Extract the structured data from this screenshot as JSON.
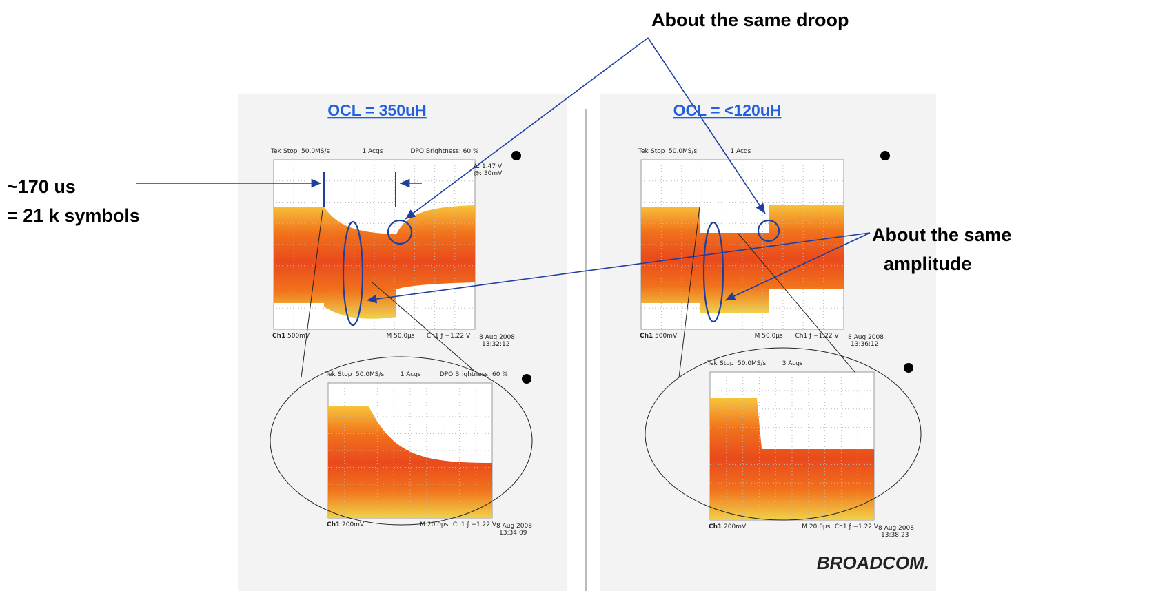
{
  "annotations": {
    "droop": "About the same droop",
    "time": [
      "~170 us",
      "= 21 k symbols"
    ],
    "amplitude": [
      "About the same",
      "amplitude"
    ]
  },
  "panels": [
    {
      "title": "OCL = 350uH"
    },
    {
      "title": "OCL = <120uH"
    }
  ],
  "scopes": [
    {
      "brand": "Tek",
      "state": "Stop",
      "rate": "50.0MS/s",
      "acqs": "1 Acqs",
      "brightness": "DPO Brightness: 60 %",
      "readout": [
        "Δ: 1.47 V",
        "@: 30mV"
      ],
      "channel": "Ch1",
      "volts": "500mV",
      "timebase": "M 50.0µs",
      "trigger": "Ch1 ƒ −1.22 V",
      "date": "8 Aug 2008",
      "time": "13:32:12"
    },
    {
      "brand": "Tek",
      "state": "Stop",
      "rate": "50.0MS/s",
      "acqs": "1 Acqs",
      "brightness": "DPO Brightness: 60 %",
      "channel": "Ch1",
      "volts": "200mV",
      "timebase": "M 20.0µs",
      "trigger": "Ch1 ƒ −1.22 V",
      "date": "8 Aug 2008",
      "time": "13:34:09"
    },
    {
      "brand": "Tek",
      "state": "Stop",
      "rate": "50.0MS/s",
      "acqs": "1 Acqs",
      "channel": "Ch1",
      "volts": "500mV",
      "timebase": "M 50.0µs",
      "trigger": "Ch1 ƒ −1.22 V",
      "date": "8 Aug 2008",
      "time": "13:36:12"
    },
    {
      "brand": "Tek",
      "state": "Stop",
      "rate": "50.0MS/s",
      "acqs": "3 Acqs",
      "channel": "Ch1",
      "volts": "200mV",
      "timebase": "M 20.0µs",
      "trigger": "Ch1 ƒ −1.22 V",
      "date": "8 Aug 2008",
      "time": "13:38:23"
    }
  ],
  "logo": "BROADCOM."
}
